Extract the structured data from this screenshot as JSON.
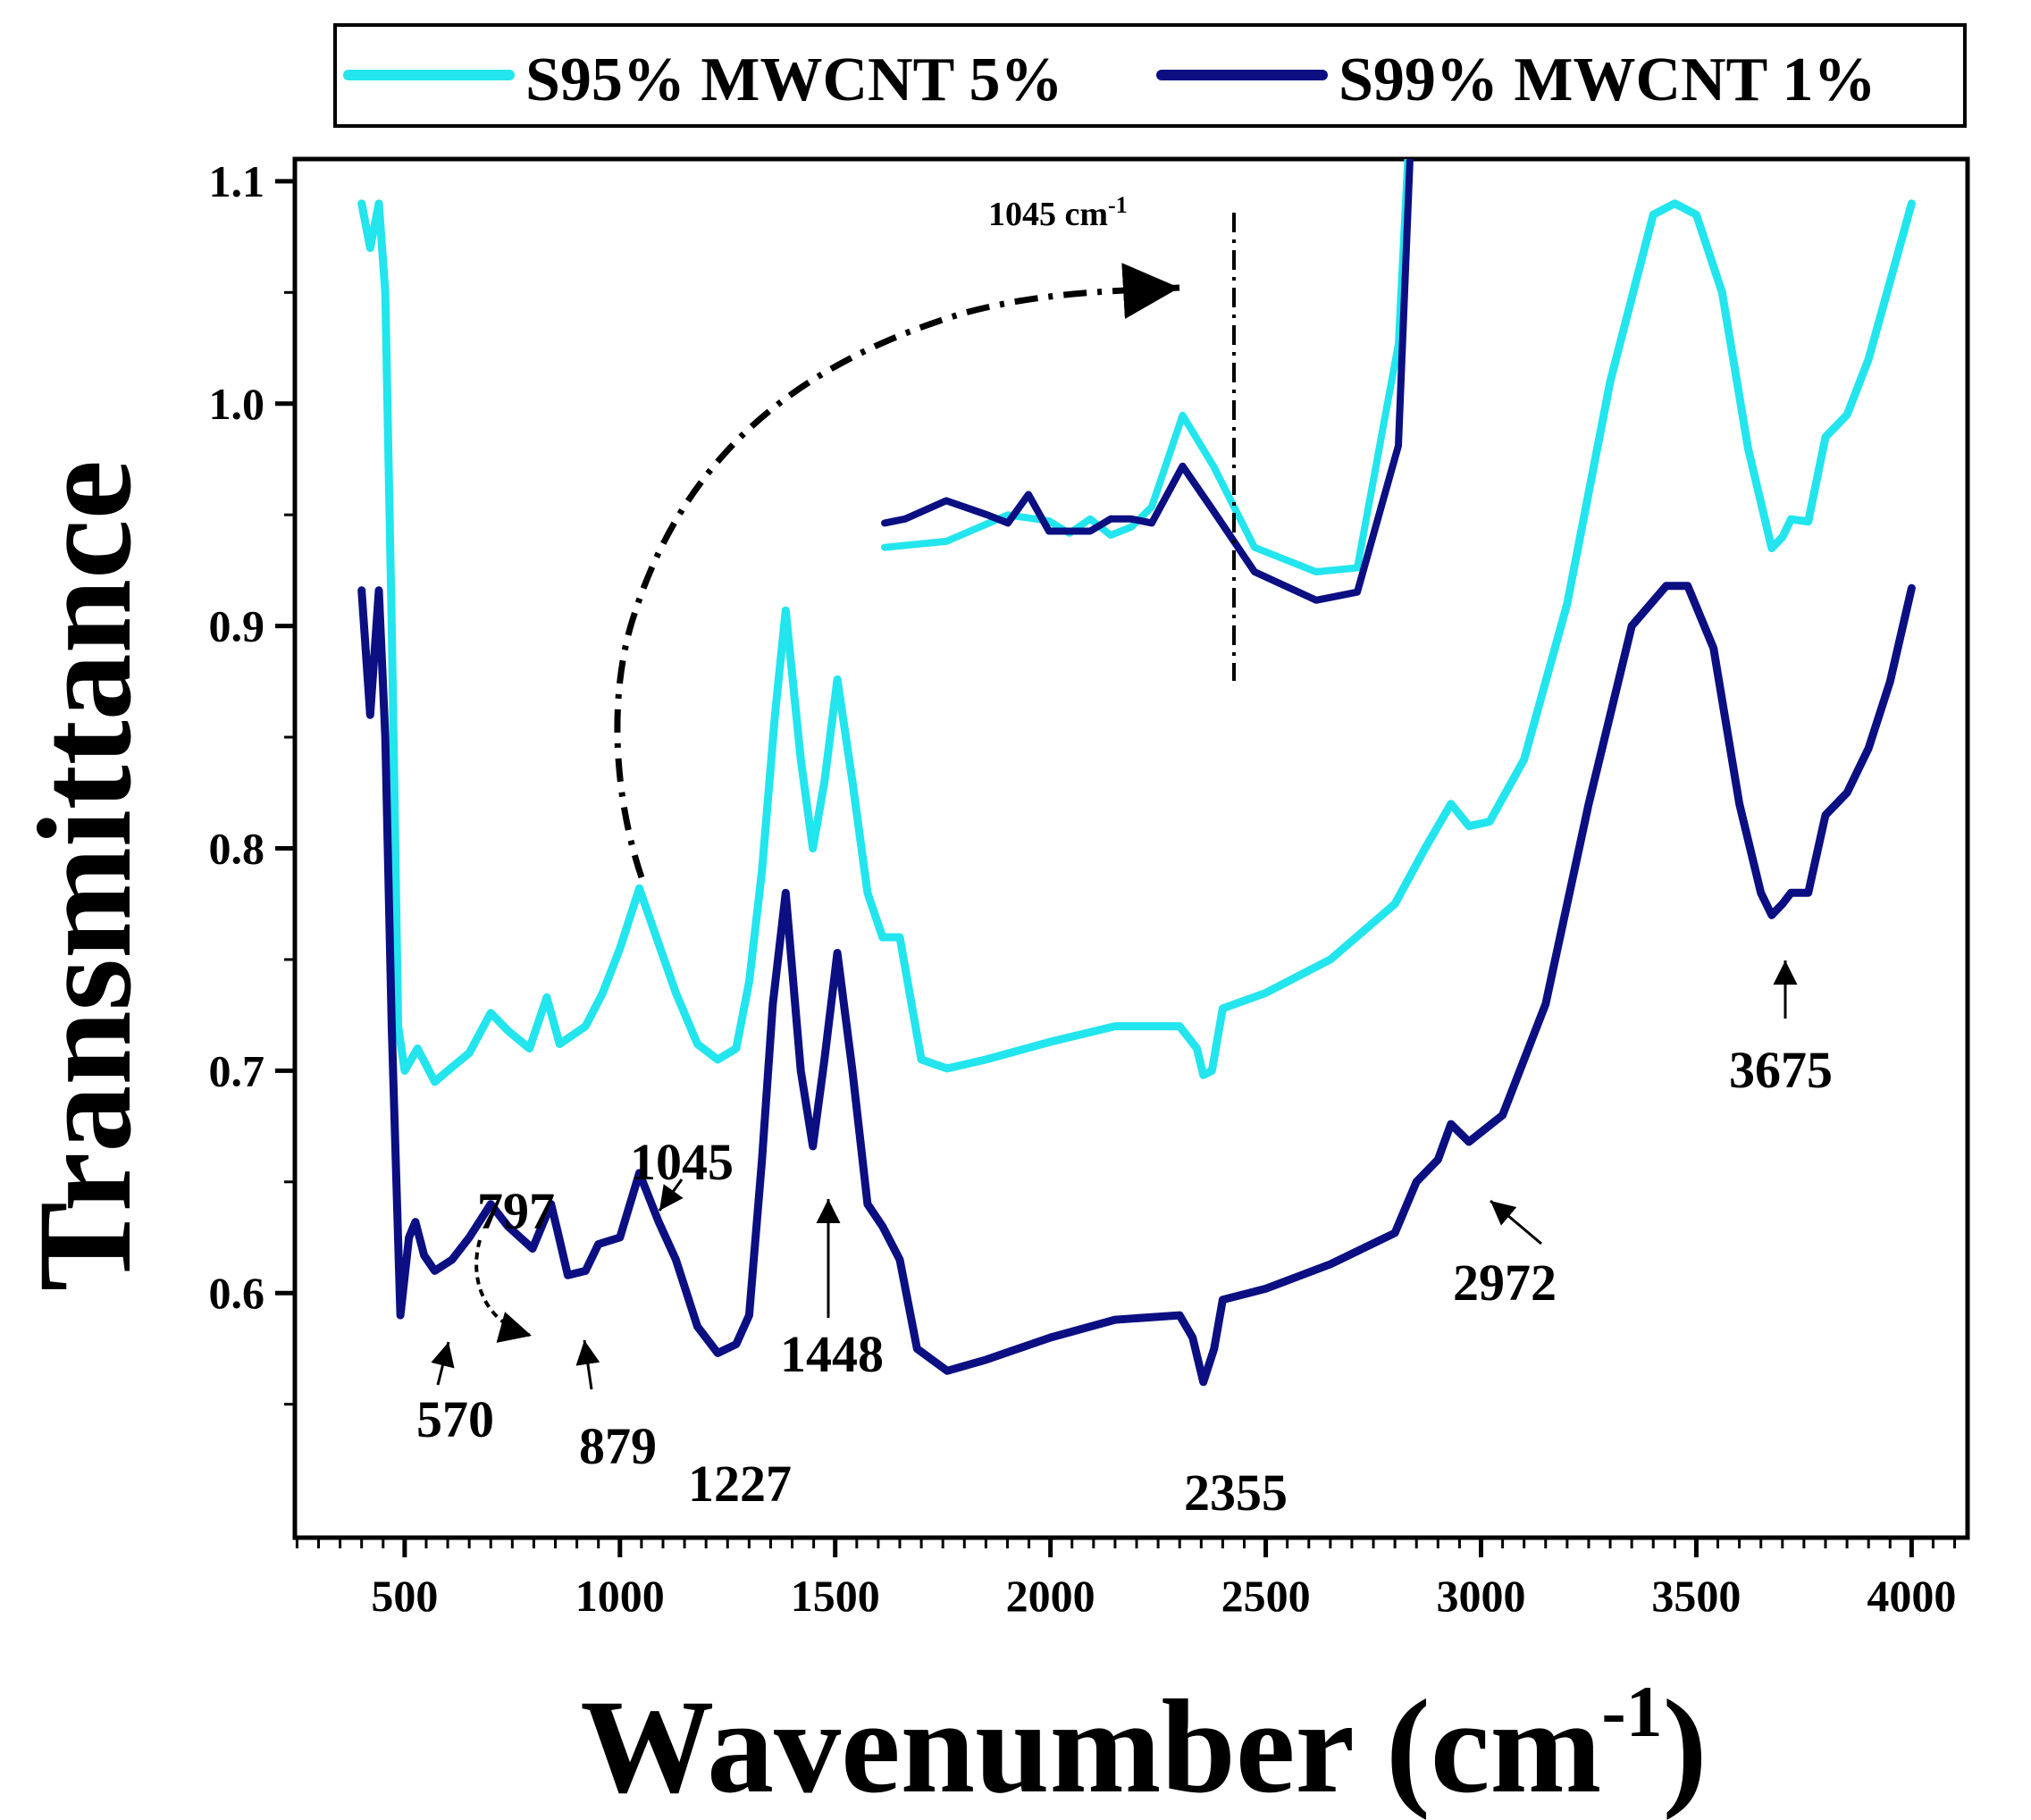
{
  "chart_data": {
    "type": "line",
    "xlabel": "Wavenumber (cm",
    "xlabel_sup": "-1",
    "xlabel_close": ")",
    "ylabel": "Transmittance",
    "xlim": [
      245,
      4130
    ],
    "ylim": [
      0.49,
      1.11
    ],
    "x_ticks": [
      500,
      1000,
      1500,
      2000,
      2500,
      3000,
      3500,
      4000
    ],
    "x_tick_labels": [
      "500",
      "1000",
      "1500",
      "2000",
      "2500",
      "3000",
      "3500",
      "4000"
    ],
    "y_ticks": [
      0.6,
      0.7,
      0.8,
      0.9,
      1.0,
      1.1
    ],
    "y_tick_labels": [
      "0.6",
      "0.7",
      "0.8",
      "0.9",
      "1.0",
      "1.1"
    ],
    "legend_position": "top, above plot",
    "series": [
      {
        "name": "S95% MWCNT 5%",
        "color": "#22e5ee",
        "points": [
          [
            400,
            1.09
          ],
          [
            420,
            1.07
          ],
          [
            440,
            1.09
          ],
          [
            455,
            1.05
          ],
          [
            470,
            0.9
          ],
          [
            485,
            0.72
          ],
          [
            500,
            0.7
          ],
          [
            530,
            0.71
          ],
          [
            570,
            0.695
          ],
          [
            600,
            0.7
          ],
          [
            650,
            0.708
          ],
          [
            700,
            0.726
          ],
          [
            740,
            0.718
          ],
          [
            790,
            0.71
          ],
          [
            830,
            0.733
          ],
          [
            860,
            0.712
          ],
          [
            920,
            0.72
          ],
          [
            960,
            0.735
          ],
          [
            1000,
            0.755
          ],
          [
            1045,
            0.782
          ],
          [
            1090,
            0.757
          ],
          [
            1130,
            0.735
          ],
          [
            1180,
            0.712
          ],
          [
            1227,
            0.705
          ],
          [
            1270,
            0.71
          ],
          [
            1300,
            0.74
          ],
          [
            1330,
            0.79
          ],
          [
            1360,
            0.86
          ],
          [
            1385,
            0.907
          ],
          [
            1420,
            0.84
          ],
          [
            1448,
            0.8
          ],
          [
            1475,
            0.83
          ],
          [
            1505,
            0.876
          ],
          [
            1540,
            0.83
          ],
          [
            1575,
            0.78
          ],
          [
            1610,
            0.76
          ],
          [
            1650,
            0.76
          ],
          [
            1700,
            0.705
          ],
          [
            1760,
            0.701
          ],
          [
            1850,
            0.705
          ],
          [
            2000,
            0.713
          ],
          [
            2150,
            0.72
          ],
          [
            2300,
            0.72
          ],
          [
            2340,
            0.71
          ],
          [
            2355,
            0.698
          ],
          [
            2375,
            0.7
          ],
          [
            2400,
            0.728
          ],
          [
            2500,
            0.735
          ],
          [
            2650,
            0.75
          ],
          [
            2800,
            0.775
          ],
          [
            2870,
            0.8
          ],
          [
            2900,
            0.81
          ],
          [
            2930,
            0.82
          ],
          [
            2972,
            0.81
          ],
          [
            3020,
            0.812
          ],
          [
            3100,
            0.84
          ],
          [
            3200,
            0.91
          ],
          [
            3300,
            1.01
          ],
          [
            3400,
            1.085
          ],
          [
            3450,
            1.09
          ],
          [
            3500,
            1.085
          ],
          [
            3560,
            1.05
          ],
          [
            3620,
            0.98
          ],
          [
            3675,
            0.935
          ],
          [
            3700,
            0.94
          ],
          [
            3720,
            0.948
          ],
          [
            3760,
            0.947
          ],
          [
            3800,
            0.985
          ],
          [
            3850,
            0.995
          ],
          [
            3900,
            1.02
          ],
          [
            3950,
            1.055
          ],
          [
            4000,
            1.09
          ]
        ]
      },
      {
        "name": "S99% MWCNT 1%",
        "color": "#0b0f82",
        "points": [
          [
            400,
            0.916
          ],
          [
            420,
            0.86
          ],
          [
            440,
            0.916
          ],
          [
            455,
            0.85
          ],
          [
            470,
            0.72
          ],
          [
            490,
            0.59
          ],
          [
            510,
            0.625
          ],
          [
            525,
            0.632
          ],
          [
            545,
            0.617
          ],
          [
            570,
            0.61
          ],
          [
            610,
            0.615
          ],
          [
            650,
            0.625
          ],
          [
            700,
            0.64
          ],
          [
            740,
            0.63
          ],
          [
            797,
            0.62
          ],
          [
            840,
            0.64
          ],
          [
            855,
            0.628
          ],
          [
            879,
            0.608
          ],
          [
            920,
            0.61
          ],
          [
            950,
            0.622
          ],
          [
            1000,
            0.625
          ],
          [
            1045,
            0.654
          ],
          [
            1090,
            0.632
          ],
          [
            1130,
            0.615
          ],
          [
            1180,
            0.585
          ],
          [
            1227,
            0.573
          ],
          [
            1270,
            0.577
          ],
          [
            1300,
            0.59
          ],
          [
            1330,
            0.66
          ],
          [
            1355,
            0.73
          ],
          [
            1385,
            0.78
          ],
          [
            1420,
            0.7
          ],
          [
            1448,
            0.666
          ],
          [
            1475,
            0.705
          ],
          [
            1505,
            0.753
          ],
          [
            1540,
            0.7
          ],
          [
            1575,
            0.64
          ],
          [
            1610,
            0.63
          ],
          [
            1650,
            0.615
          ],
          [
            1690,
            0.575
          ],
          [
            1760,
            0.565
          ],
          [
            1850,
            0.57
          ],
          [
            2000,
            0.58
          ],
          [
            2150,
            0.588
          ],
          [
            2300,
            0.59
          ],
          [
            2330,
            0.58
          ],
          [
            2355,
            0.56
          ],
          [
            2380,
            0.575
          ],
          [
            2400,
            0.597
          ],
          [
            2500,
            0.602
          ],
          [
            2650,
            0.613
          ],
          [
            2800,
            0.627
          ],
          [
            2850,
            0.65
          ],
          [
            2900,
            0.66
          ],
          [
            2930,
            0.676
          ],
          [
            2972,
            0.668
          ],
          [
            3050,
            0.68
          ],
          [
            3150,
            0.73
          ],
          [
            3250,
            0.82
          ],
          [
            3350,
            0.9
          ],
          [
            3430,
            0.918
          ],
          [
            3480,
            0.918
          ],
          [
            3540,
            0.89
          ],
          [
            3600,
            0.82
          ],
          [
            3650,
            0.78
          ],
          [
            3675,
            0.77
          ],
          [
            3700,
            0.775
          ],
          [
            3720,
            0.78
          ],
          [
            3760,
            0.78
          ],
          [
            3800,
            0.815
          ],
          [
            3850,
            0.825
          ],
          [
            3900,
            0.845
          ],
          [
            3950,
            0.875
          ],
          [
            4000,
            0.917
          ]
        ]
      }
    ],
    "annotations": [
      "570",
      "797",
      "879",
      "1045",
      "1227",
      "1448",
      "2355",
      "2972",
      "3675"
    ],
    "inset": {
      "label": "1045 cm",
      "label_sup": "-1",
      "xlim": [
        900,
        1200
      ],
      "series": [
        {
          "name": "S95% MWCNT 5%",
          "points": [
            [
              900,
              0.7
            ],
            [
              930,
              0.703
            ],
            [
              960,
              0.716
            ],
            [
              980,
              0.713
            ],
            [
              990,
              0.707
            ],
            [
              1000,
              0.714
            ],
            [
              1010,
              0.706
            ],
            [
              1020,
              0.71
            ],
            [
              1030,
              0.72
            ],
            [
              1045,
              0.765
            ],
            [
              1060,
              0.74
            ],
            [
              1080,
              0.7
            ],
            [
              1110,
              0.688
            ],
            [
              1130,
              0.69
            ],
            [
              1150,
              0.8
            ],
            [
              1160,
              1.0
            ]
          ]
        },
        {
          "name": "S99% MWCNT 1%",
          "points": [
            [
              900,
              0.712
            ],
            [
              910,
              0.714
            ],
            [
              930,
              0.723
            ],
            [
              950,
              0.716
            ],
            [
              960,
              0.712
            ],
            [
              970,
              0.726
            ],
            [
              980,
              0.708
            ],
            [
              1000,
              0.708
            ],
            [
              1010,
              0.714
            ],
            [
              1020,
              0.714
            ],
            [
              1030,
              0.712
            ],
            [
              1045,
              0.74
            ],
            [
              1060,
              0.718
            ],
            [
              1080,
              0.688
            ],
            [
              1110,
              0.674
            ],
            [
              1130,
              0.678
            ],
            [
              1150,
              0.75
            ],
            [
              1160,
              1.0
            ]
          ]
        }
      ]
    }
  }
}
